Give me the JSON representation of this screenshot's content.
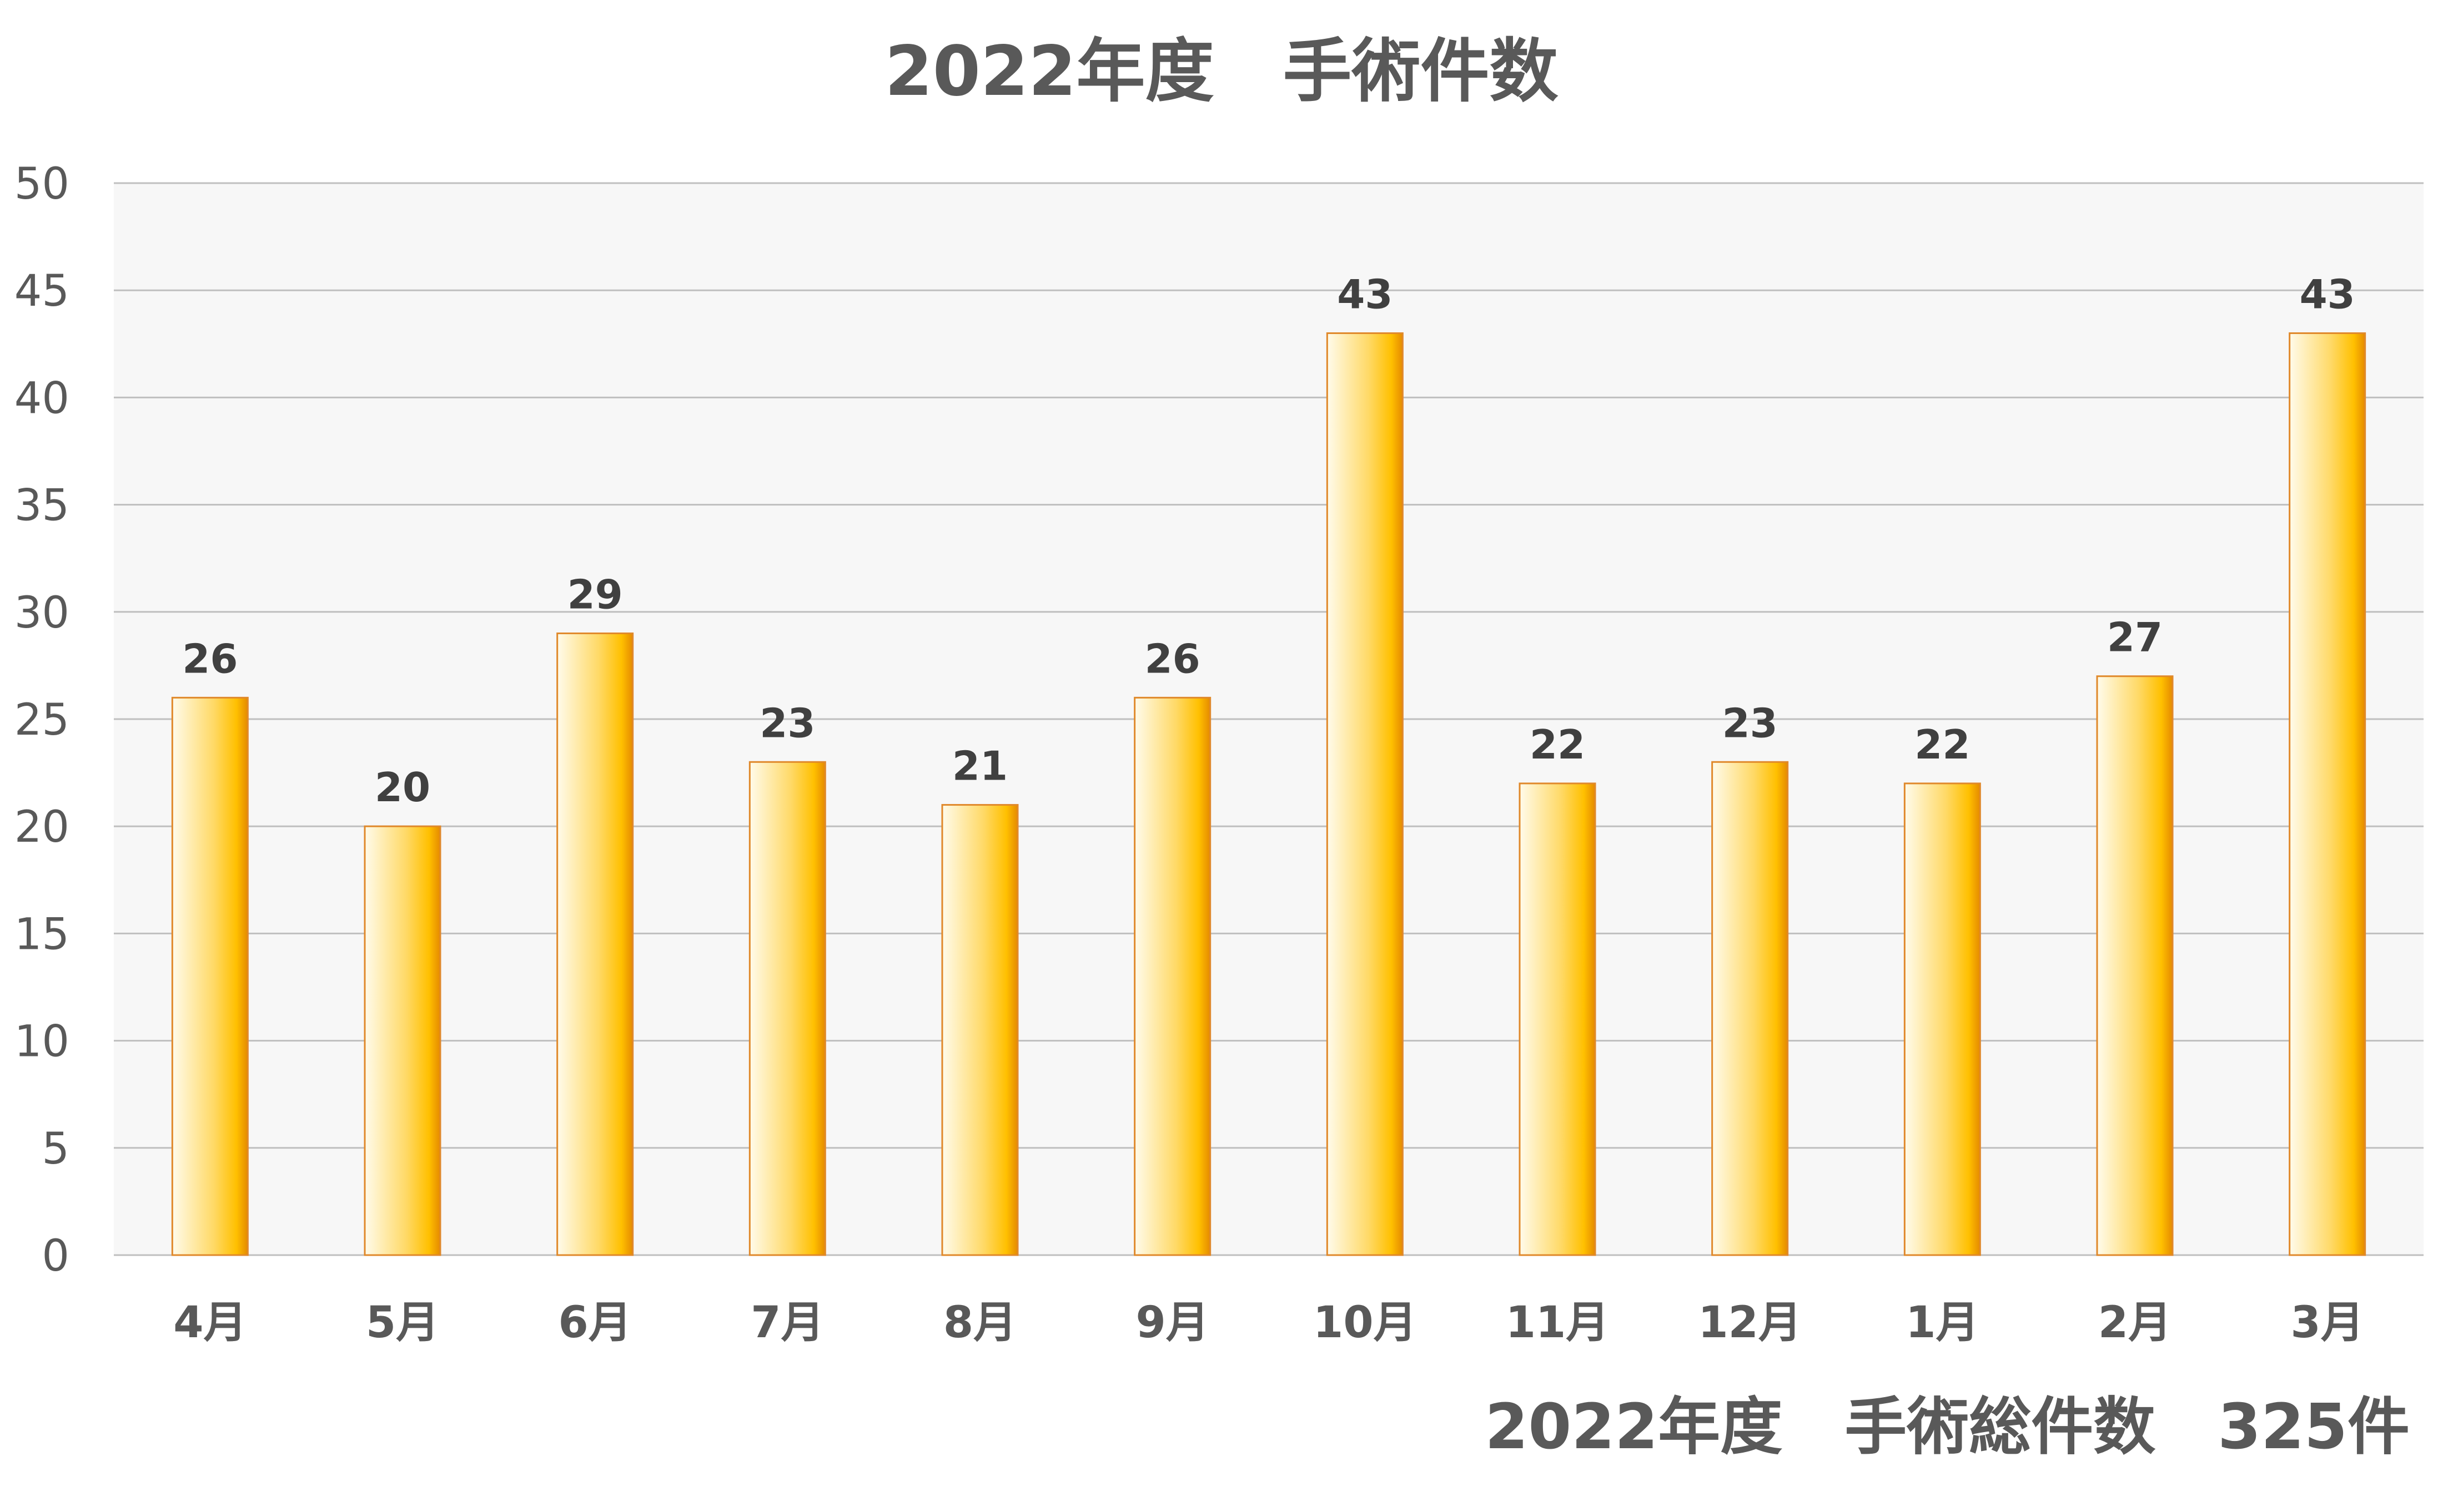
{
  "chart_data": {
    "type": "bar",
    "title": "2022年度　手術件数",
    "footer": "2022年度　手術総件数　325件",
    "categories": [
      "4月",
      "5月",
      "6月",
      "7月",
      "8月",
      "9月",
      "10月",
      "11月",
      "12月",
      "1月",
      "2月",
      "3月"
    ],
    "values": [
      26,
      20,
      29,
      23,
      21,
      26,
      43,
      22,
      23,
      22,
      27,
      43
    ],
    "ylim": [
      0,
      50
    ],
    "yticks": [
      0,
      5,
      10,
      15,
      20,
      25,
      30,
      35,
      40,
      45,
      50
    ],
    "grid": true,
    "data_labels": true,
    "legend": "none",
    "colors": {
      "bar_light": "#FFFBEB",
      "bar_mid": "#FFD966",
      "bar_dark": "#FFC000",
      "bar_edge": "#E58A00",
      "bar_border": "#E0892B",
      "plot_bg": "#F7F7F7",
      "grid": "#BFBFBF",
      "text": "#595959",
      "label_text": "#404040"
    }
  }
}
